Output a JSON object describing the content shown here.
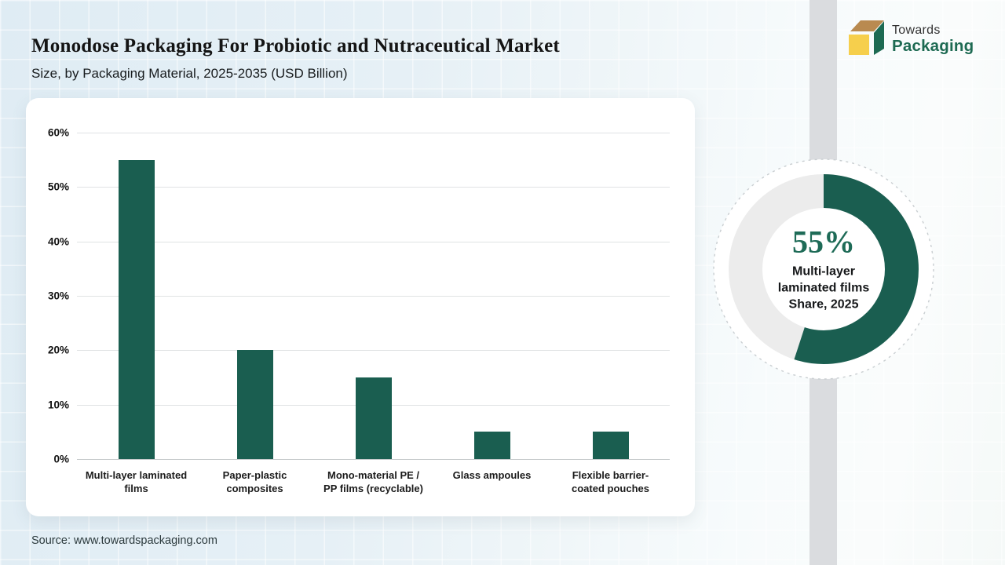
{
  "header": {
    "title": "Monodose Packaging For Probiotic and Nutraceutical Market",
    "subtitle": "Size, by Packaging Material, 2025-2035 (USD Billion)"
  },
  "logo": {
    "name_top": "Towards",
    "name_bottom": "Packaging"
  },
  "footer": {
    "source": "Source: www.towardspackaging.com"
  },
  "colors": {
    "bar_green": "#1A5E50",
    "donut_green": "#1A5E50",
    "donut_track": "#ECECEC",
    "accent_text_green": "#1E6B57",
    "logo_green": "#1D6A52",
    "logo_tan": "#B98A50",
    "logo_yellow": "#F6CF4C"
  },
  "chart_data": [
    {
      "type": "bar",
      "title": "Monodose Packaging For Probiotic and Nutraceutical Market Size, by Packaging Material, 2025-2035 (USD Billion)",
      "categories": [
        "Multi-layer laminated films",
        "Paper-plastic composites",
        "Mono-material PE / PP films (recyclable)",
        "Glass ampoules",
        "Flexible barrier-coated pouches"
      ],
      "category_lines": [
        [
          "Multi-layer laminated",
          "films"
        ],
        [
          "Paper-plastic",
          "composites"
        ],
        [
          "Mono-material PE /",
          "PP films (recyclable)"
        ],
        [
          "Glass ampoules"
        ],
        [
          "Flexible barrier-",
          "coated pouches"
        ]
      ],
      "values": [
        55,
        20,
        15,
        5,
        5
      ],
      "unit": "%",
      "xlabel": "",
      "ylabel": "",
      "ylim": [
        0,
        60
      ],
      "yticks": [
        60,
        50,
        40,
        30,
        20,
        10,
        0
      ],
      "ytick_suffix": "%",
      "grid": true,
      "legend": false
    },
    {
      "type": "pie",
      "title": "Multi-layer laminated films Share, 2025",
      "series": [
        {
          "name": "Multi-layer laminated films",
          "value": 55
        },
        {
          "name": "Other",
          "value": 45
        }
      ],
      "value_label": "55%",
      "center_lines": [
        "Multi-layer",
        "laminated films",
        "Share, 2025"
      ]
    }
  ]
}
